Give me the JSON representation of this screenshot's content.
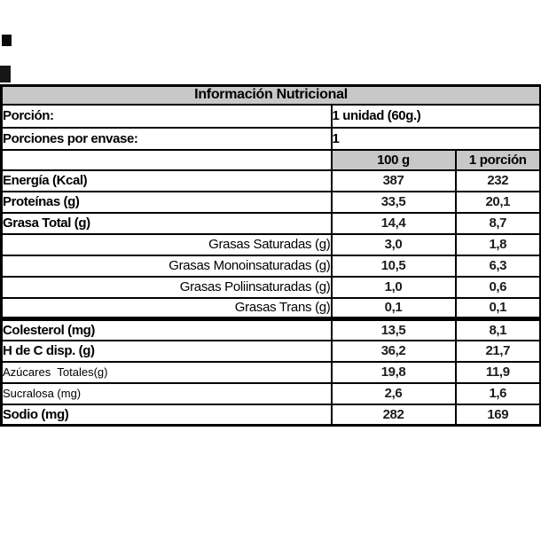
{
  "colors": {
    "background": "#ffffff",
    "border": "#000000",
    "header_bg": "#c8c8c8",
    "value_text": "#1c1c1c"
  },
  "marks": {
    "description": "two small black print-artifact squares at top-left edge"
  },
  "table": {
    "title": "Información Nutricional",
    "info_rows": [
      {
        "label": "Porción:",
        "value": "1 unidad (60g.)"
      },
      {
        "label": "Porciones por envase:",
        "value": "1"
      }
    ],
    "columns": {
      "per100": "100 g",
      "per_portion": "1 porción"
    },
    "rows": [
      {
        "label": "Energía (Kcal)",
        "per100": "387",
        "portion": "232"
      },
      {
        "label": "Proteínas (g)",
        "per100": "33,5",
        "portion": "20,1"
      },
      {
        "label": "Grasa Total (g)",
        "per100": "14,4",
        "portion": "8,7"
      },
      {
        "label": "Grasas Saturadas (g)",
        "per100": "3,0",
        "portion": "1,8"
      },
      {
        "label": "Grasas Monoinsaturadas (g)",
        "per100": "10,5",
        "portion": "6,3"
      },
      {
        "label": "Grasas Poliinsaturadas (g)",
        "per100": "1,0",
        "portion": "0,6"
      },
      {
        "label": "Grasas Trans (g)",
        "per100": "0,1",
        "portion": "0,1"
      },
      {
        "label": "Colesterol (mg)",
        "per100": "13,5",
        "portion": "8,1"
      },
      {
        "label": "H de C disp. (g)",
        "per100": "36,2",
        "portion": "21,7"
      },
      {
        "label": "Azúcares  Totales(g)",
        "per100": "19,8",
        "portion": "11,9"
      },
      {
        "label": "Sucralosa (mg)",
        "per100": "2,6",
        "portion": "1,6"
      },
      {
        "label": "Sodio (mg)",
        "per100": "282",
        "portion": "169"
      }
    ]
  }
}
